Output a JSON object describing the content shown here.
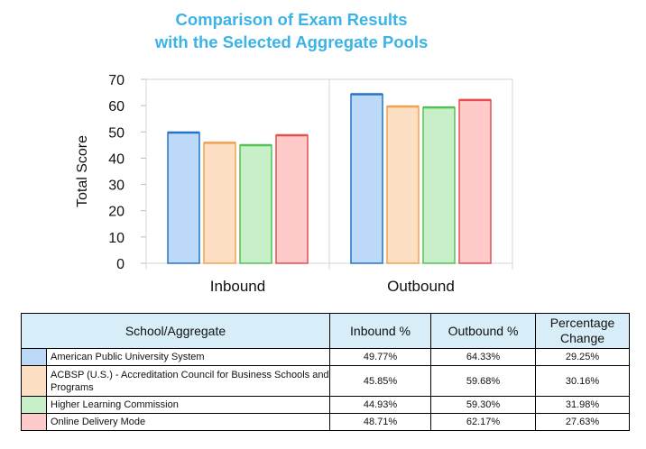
{
  "chart_data": {
    "type": "bar",
    "title": [
      "Comparison of Exam Results",
      "with the Selected Aggregate Pools"
    ],
    "ylabel": "Total Score",
    "xlabel": "",
    "ylim": [
      0,
      70
    ],
    "yticks": [
      0,
      10,
      20,
      30,
      40,
      50,
      60,
      70
    ],
    "categories": [
      "Inbound",
      "Outbound"
    ],
    "grid": false,
    "series": [
      {
        "name": "American Public University System",
        "values": [
          49.77,
          64.33
        ],
        "fill": "#bcd9f7",
        "stroke": "#2673c6"
      },
      {
        "name": "ACBSP (U.S.) - Accreditation Council for Business Schools and Programs",
        "values": [
          45.85,
          59.68
        ],
        "fill": "#fde0c3",
        "stroke": "#f5a050"
      },
      {
        "name": "Higher Learning Commission",
        "values": [
          44.93,
          59.3
        ],
        "fill": "#c8f0c8",
        "stroke": "#55c055"
      },
      {
        "name": "Online Delivery Mode",
        "values": [
          48.71,
          62.17
        ],
        "fill": "#ffcaca",
        "stroke": "#e45050"
      }
    ]
  },
  "table": {
    "headers": [
      "School/Aggregate",
      "Inbound %",
      "Outbound %",
      "Percentage Change"
    ],
    "rows": [
      {
        "name": "American Public University System",
        "inbound": "49.77%",
        "outbound": "64.33%",
        "change": "29.25%",
        "color": "#bcd9f7"
      },
      {
        "name": "ACBSP (U.S.) - Accreditation Council for Business Schools and Programs",
        "inbound": "45.85%",
        "outbound": "59.68%",
        "change": "30.16%",
        "color": "#fde0c3"
      },
      {
        "name": "Higher Learning Commission",
        "inbound": "44.93%",
        "outbound": "59.30%",
        "change": "31.98%",
        "color": "#c8f0c8"
      },
      {
        "name": "Online Delivery Mode",
        "inbound": "48.71%",
        "outbound": "62.17%",
        "change": "27.63%",
        "color": "#ffcaca"
      }
    ]
  }
}
